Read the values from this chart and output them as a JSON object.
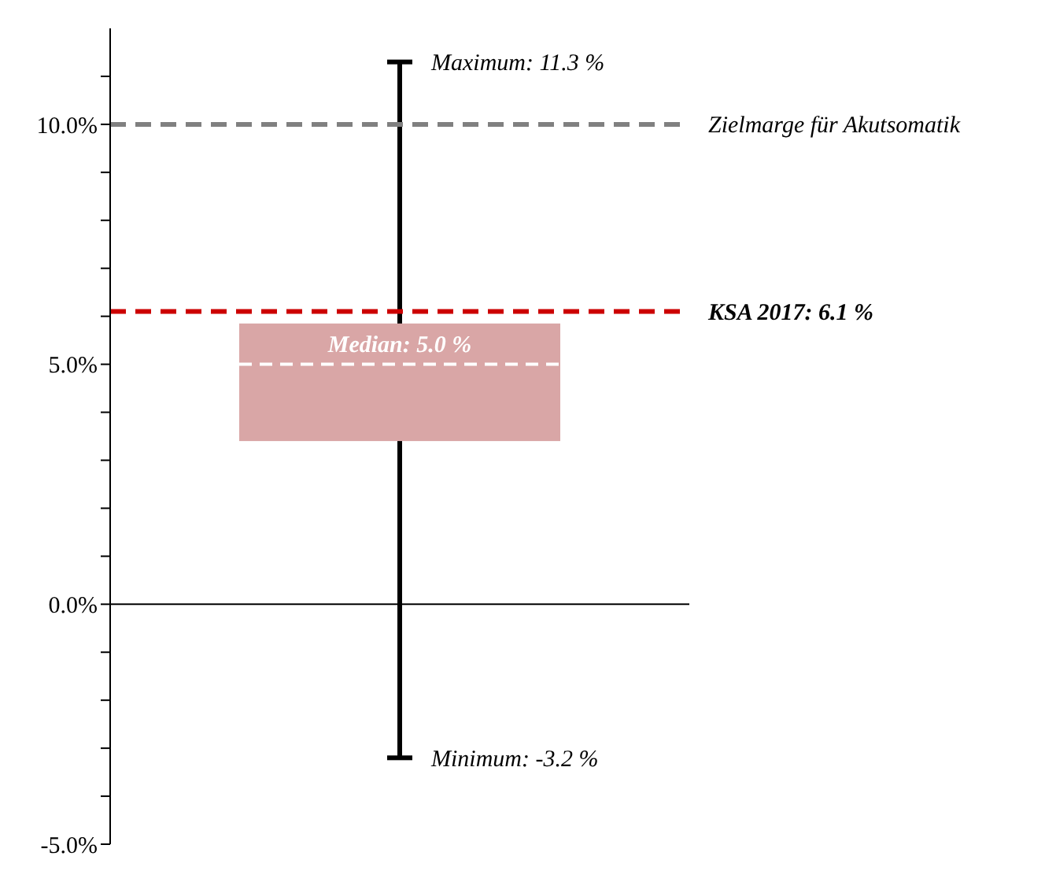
{
  "chart_data": {
    "type": "box",
    "categories": [
      null
    ],
    "boxes": [
      {
        "low": -3.2,
        "q1": 3.4,
        "median": 5.0,
        "q3": 5.85,
        "high": 11.3
      }
    ],
    "colors": [
      "#d9a6a6"
    ],
    "ylim": [
      -5,
      12
    ],
    "yticks": [
      {
        "value": -5,
        "label": "-5.0%"
      },
      {
        "value": -4,
        "label": null
      },
      {
        "value": -3,
        "label": null
      },
      {
        "value": -2,
        "label": null
      },
      {
        "value": -1,
        "label": null
      },
      {
        "value": 0,
        "label": "0.0%"
      },
      {
        "value": 1,
        "label": null
      },
      {
        "value": 2,
        "label": null
      },
      {
        "value": 3,
        "label": null
      },
      {
        "value": 4,
        "label": null
      },
      {
        "value": 5,
        "label": "5.0%"
      },
      {
        "value": 6,
        "label": null
      },
      {
        "value": 7,
        "label": null
      },
      {
        "value": 8,
        "label": null
      },
      {
        "value": 9,
        "label": null
      },
      {
        "value": 10,
        "label": "10.0%"
      },
      {
        "value": 11,
        "label": null
      }
    ],
    "ref_lines": [
      {
        "axis": "y",
        "value": 10,
        "label": "Zielmarge für Akutsomatik",
        "color": "#808080",
        "line_style": "dashed"
      },
      {
        "axis": "y",
        "value": 6.1,
        "label": "KSA 2017: 6.1 %",
        "color": "#cc0000",
        "line_style": "dashed"
      }
    ],
    "annotations": [
      "Maximum: 11.3 %",
      {
        "text": "Median: 5.0 %",
        "y": 5.0
      },
      "Minimum: -3.2 %"
    ],
    "tick_labels": "y"
  }
}
